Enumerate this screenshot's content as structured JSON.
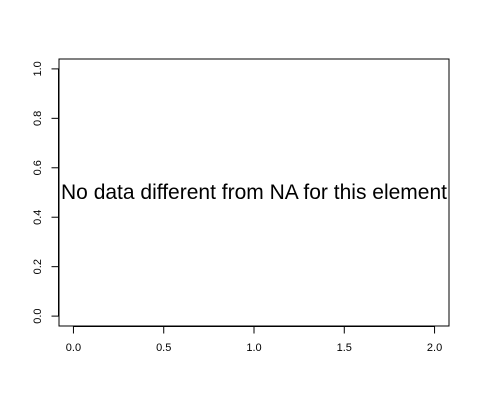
{
  "chart_data": {
    "type": "scatter",
    "title": "",
    "xlabel": "",
    "ylabel": "",
    "xlim": [
      -0.08,
      2.08
    ],
    "ylim": [
      -0.04,
      1.04
    ],
    "x_ticks": [
      0.0,
      0.5,
      1.0,
      1.5,
      2.0
    ],
    "x_tick_labels": [
      "0.0",
      "0.5",
      "1.0",
      "1.5",
      "2.0"
    ],
    "y_ticks": [
      0.0,
      0.2,
      0.4,
      0.6,
      0.8,
      1.0
    ],
    "y_tick_labels": [
      "0.0",
      "0.2",
      "0.4",
      "0.6",
      "0.8",
      "1.0"
    ],
    "series": [],
    "grid": false,
    "annotation": {
      "text": "No data different from NA for this element",
      "x": 1.0,
      "y": 0.5
    }
  },
  "colors": {
    "axis": "#000000",
    "background": "#ffffff",
    "text": "#000000"
  }
}
